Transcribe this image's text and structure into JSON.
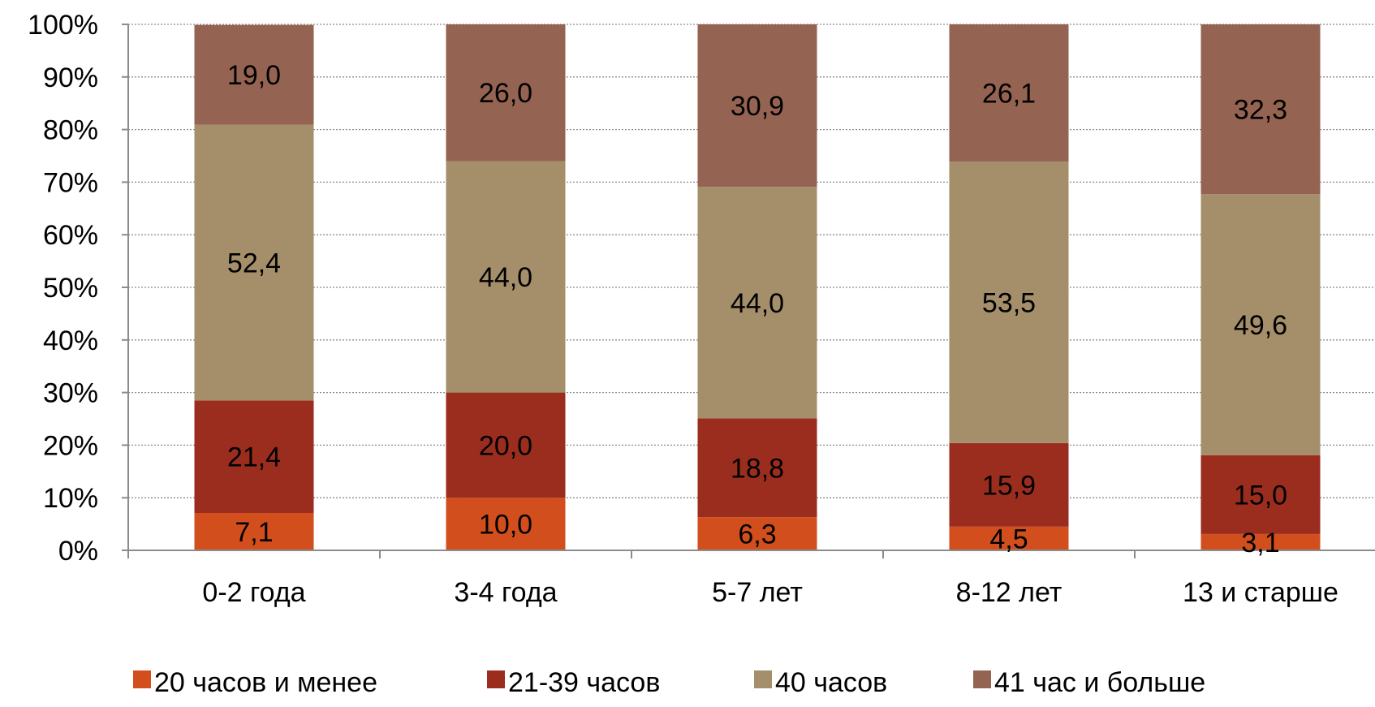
{
  "chart_data": {
    "type": "bar",
    "stacked": true,
    "percent": true,
    "categories": [
      "0-2 года",
      "3-4 года",
      "5-7 лет",
      "8-12 лет",
      "13 и старше"
    ],
    "series": [
      {
        "name": "20 часов и менее",
        "color": "#d24f1d",
        "values": [
          7.1,
          10.0,
          6.3,
          4.5,
          3.1
        ],
        "labels": [
          "7,1",
          "10,0",
          "6,3",
          "4,5",
          "3,1"
        ]
      },
      {
        "name": "21-39 часов",
        "color": "#9b2d1f",
        "values": [
          21.4,
          20.0,
          18.8,
          15.9,
          15.0
        ],
        "labels": [
          "21,4",
          "20,0",
          "18,8",
          "15,9",
          "15,0"
        ]
      },
      {
        "name": "40 часов",
        "color": "#a58f6b",
        "values": [
          52.4,
          44.0,
          44.0,
          53.5,
          49.6
        ],
        "labels": [
          "52,4",
          "44,0",
          "44,0",
          "53,5",
          "49,6"
        ]
      },
      {
        "name": "41 час и больше",
        "color": "#956352",
        "values": [
          19.0,
          26.0,
          30.9,
          26.1,
          32.3
        ],
        "labels": [
          "19,0",
          "26,0",
          "30,9",
          "26,1",
          "32,3"
        ]
      }
    ],
    "yticks": [
      "0%",
      "10%",
      "20%",
      "30%",
      "40%",
      "50%",
      "60%",
      "70%",
      "80%",
      "90%",
      "100%"
    ],
    "ylim": [
      0,
      100
    ],
    "grid": true,
    "legend_position": "bottom",
    "title": "",
    "xlabel": "",
    "ylabel": ""
  }
}
